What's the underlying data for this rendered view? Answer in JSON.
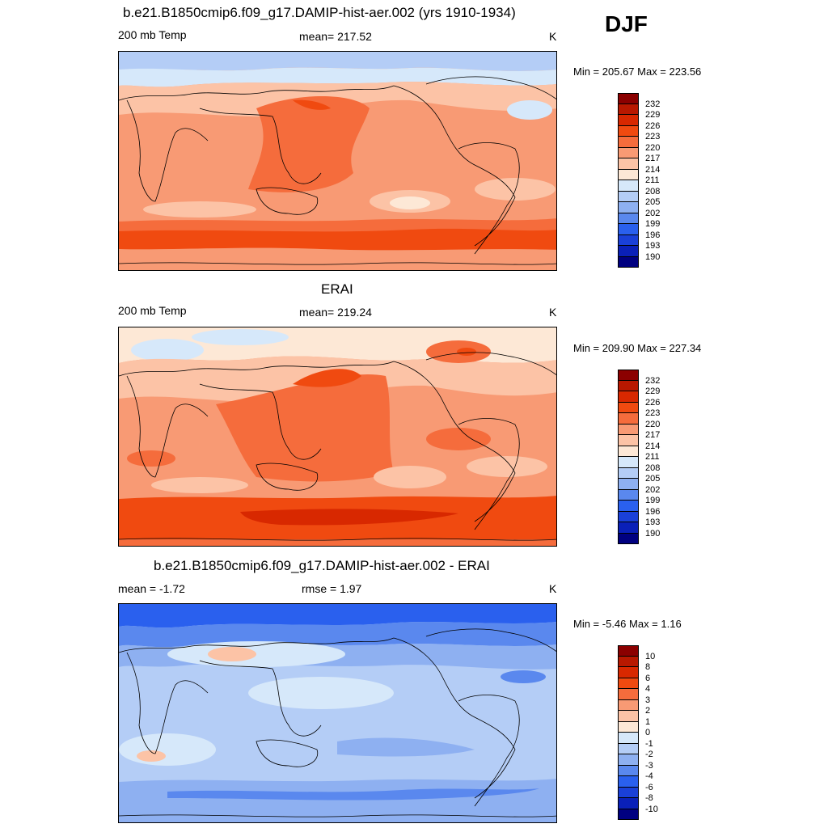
{
  "season": "DJF",
  "colors": {
    "temp": [
      "#8b0000",
      "#b81800",
      "#d82800",
      "#f04a10",
      "#f56c3c",
      "#f89a74",
      "#fcc3a6",
      "#fde8d6",
      "#d6e8fa",
      "#b4cdf6",
      "#8eb0f1",
      "#5a88ee",
      "#2a60ee",
      "#1a40d8",
      "#0a20b8",
      "#000080"
    ],
    "diff": [
      "#8b0000",
      "#b81800",
      "#d82800",
      "#f04a10",
      "#f56c3c",
      "#f89a74",
      "#fcc3a6",
      "#fde8d6",
      "#d6e8fa",
      "#b4cdf6",
      "#8eb0f1",
      "#5a88ee",
      "#2a60ee",
      "#1a40d8",
      "#0a20b8",
      "#000080"
    ]
  },
  "panels": [
    {
      "title": "b.e21.B1850cmip6.f09_g17.DAMIP-hist-aer.002 (yrs 1910-1934)",
      "left": "200 mb Temp",
      "center": "mean= 217.52",
      "right": "K",
      "minmax": "Min = 205.67 Max = 223.56",
      "levels": [
        "232",
        "229",
        "226",
        "223",
        "220",
        "217",
        "214",
        "211",
        "208",
        "205",
        "202",
        "199",
        "196",
        "193",
        "190"
      ],
      "palette": "temp"
    },
    {
      "title": "ERAI",
      "left": "200 mb Temp",
      "center": "mean= 219.24",
      "right": "K",
      "minmax": "Min = 209.90 Max = 227.34",
      "levels": [
        "232",
        "229",
        "226",
        "223",
        "220",
        "217",
        "214",
        "211",
        "208",
        "205",
        "202",
        "199",
        "196",
        "193",
        "190"
      ],
      "palette": "temp"
    },
    {
      "title": "b.e21.B1850cmip6.f09_g17.DAMIP-hist-aer.002 - ERAI",
      "left": "mean =  -1.72",
      "center": "rmse =   1.97",
      "right": "K",
      "minmax": "Min =  -5.46 Max =   1.16",
      "levels": [
        "10",
        "8",
        "6",
        "4",
        "3",
        "2",
        "1",
        "0",
        "-1",
        "-2",
        "-3",
        "-4",
        "-6",
        "-8",
        "-10"
      ],
      "palette": "diff"
    }
  ]
}
